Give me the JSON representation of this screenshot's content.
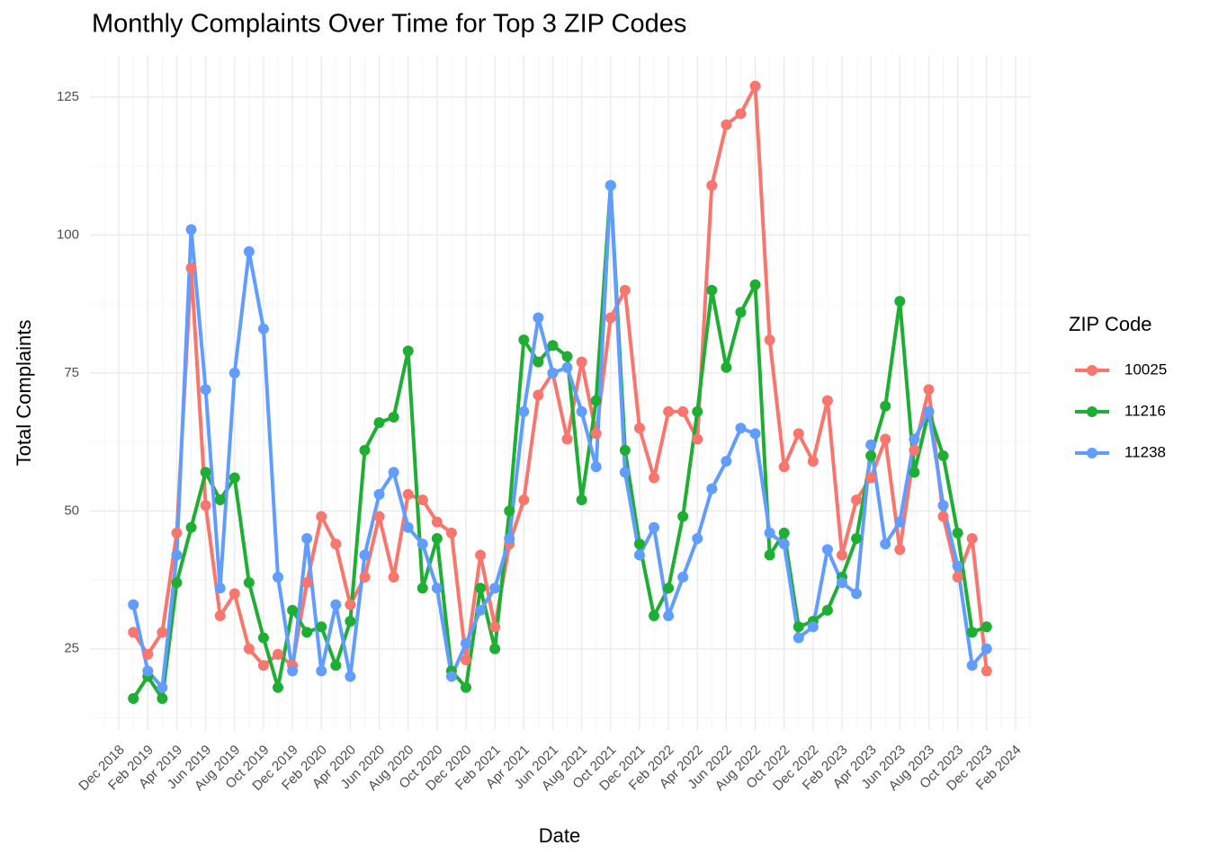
{
  "chart_data": {
    "type": "line",
    "title": "Monthly Complaints Over Time for Top 3 ZIP Codes",
    "xlabel": "Date",
    "ylabel": "Total Complaints",
    "legend_title": "ZIP Code",
    "legend": "right",
    "grid": true,
    "x": [
      "2019-01",
      "2019-02",
      "2019-03",
      "2019-04",
      "2019-05",
      "2019-06",
      "2019-07",
      "2019-08",
      "2019-09",
      "2019-10",
      "2019-11",
      "2019-12",
      "2020-01",
      "2020-02",
      "2020-03",
      "2020-04",
      "2020-05",
      "2020-06",
      "2020-07",
      "2020-08",
      "2020-09",
      "2020-10",
      "2020-11",
      "2020-12",
      "2021-01",
      "2021-02",
      "2021-03",
      "2021-04",
      "2021-05",
      "2021-06",
      "2021-07",
      "2021-08",
      "2021-09",
      "2021-10",
      "2021-11",
      "2021-12",
      "2022-01",
      "2022-02",
      "2022-03",
      "2022-04",
      "2022-05",
      "2022-06",
      "2022-07",
      "2022-08",
      "2022-09",
      "2022-10",
      "2022-11",
      "2022-12",
      "2023-01",
      "2023-02",
      "2023-03",
      "2023-04",
      "2023-05",
      "2023-06",
      "2023-07",
      "2023-08",
      "2023-09",
      "2023-10",
      "2023-11",
      "2023-12"
    ],
    "xlim": [
      "2018-10",
      "2024-03"
    ],
    "xticks": [
      {
        "value": "2018-12",
        "label": "Dec 2018"
      },
      {
        "value": "2019-02",
        "label": "Feb 2019"
      },
      {
        "value": "2019-04",
        "label": "Apr 2019"
      },
      {
        "value": "2019-06",
        "label": "Jun 2019"
      },
      {
        "value": "2019-08",
        "label": "Aug 2019"
      },
      {
        "value": "2019-10",
        "label": "Oct 2019"
      },
      {
        "value": "2019-12",
        "label": "Dec 2019"
      },
      {
        "value": "2020-02",
        "label": "Feb 2020"
      },
      {
        "value": "2020-04",
        "label": "Apr 2020"
      },
      {
        "value": "2020-06",
        "label": "Jun 2020"
      },
      {
        "value": "2020-08",
        "label": "Aug 2020"
      },
      {
        "value": "2020-10",
        "label": "Oct 2020"
      },
      {
        "value": "2020-12",
        "label": "Dec 2020"
      },
      {
        "value": "2021-02",
        "label": "Feb 2021"
      },
      {
        "value": "2021-04",
        "label": "Apr 2021"
      },
      {
        "value": "2021-06",
        "label": "Jun 2021"
      },
      {
        "value": "2021-08",
        "label": "Aug 2021"
      },
      {
        "value": "2021-10",
        "label": "Oct 2021"
      },
      {
        "value": "2021-12",
        "label": "Dec 2021"
      },
      {
        "value": "2022-02",
        "label": "Feb 2022"
      },
      {
        "value": "2022-04",
        "label": "Apr 2022"
      },
      {
        "value": "2022-06",
        "label": "Jun 2022"
      },
      {
        "value": "2022-08",
        "label": "Aug 2022"
      },
      {
        "value": "2022-10",
        "label": "Oct 2022"
      },
      {
        "value": "2022-12",
        "label": "Dec 2022"
      },
      {
        "value": "2023-02",
        "label": "Feb 2023"
      },
      {
        "value": "2023-04",
        "label": "Apr 2023"
      },
      {
        "value": "2023-06",
        "label": "Jun 2023"
      },
      {
        "value": "2023-08",
        "label": "Aug 2023"
      },
      {
        "value": "2023-10",
        "label": "Oct 2023"
      },
      {
        "value": "2023-12",
        "label": "Dec 2023"
      },
      {
        "value": "2024-02",
        "label": "Feb 2024"
      }
    ],
    "ylim": [
      10.3,
      132.5
    ],
    "yticks": [
      25,
      50,
      75,
      100,
      125
    ],
    "series": [
      {
        "name": "10025",
        "color": "#F8766D",
        "values": [
          28,
          24,
          28,
          46,
          94,
          51,
          31,
          35,
          25,
          22,
          24,
          22,
          37,
          49,
          44,
          33,
          38,
          49,
          38,
          53,
          52,
          48,
          46,
          23,
          42,
          29,
          44,
          52,
          71,
          75,
          63,
          77,
          64,
          85,
          90,
          65,
          56,
          68,
          68,
          63,
          109,
          120,
          122,
          127,
          81,
          58,
          64,
          59,
          70,
          42,
          52,
          56,
          63,
          43,
          61,
          72,
          49,
          38,
          45,
          21
        ]
      },
      {
        "name": "11216",
        "color": "#1FAE34",
        "values": [
          16,
          20,
          16,
          37,
          47,
          57,
          52,
          56,
          37,
          27,
          18,
          32,
          28,
          29,
          22,
          30,
          61,
          66,
          67,
          79,
          36,
          45,
          21,
          18,
          36,
          25,
          50,
          81,
          77,
          80,
          78,
          52,
          70,
          109,
          61,
          44,
          31,
          36,
          49,
          68,
          90,
          76,
          86,
          91,
          42,
          46,
          29,
          30,
          32,
          38,
          45,
          60,
          69,
          88,
          57,
          68,
          60,
          46,
          28,
          29
        ]
      },
      {
        "name": "11238",
        "color": "#619CFF",
        "values": [
          33,
          21,
          18,
          42,
          101,
          72,
          36,
          75,
          97,
          83,
          38,
          21,
          45,
          21,
          33,
          20,
          42,
          53,
          57,
          47,
          44,
          36,
          20,
          26,
          32,
          36,
          45,
          68,
          85,
          75,
          76,
          68,
          58,
          109,
          57,
          42,
          47,
          31,
          38,
          45,
          54,
          59,
          65,
          64,
          46,
          44,
          27,
          29,
          43,
          37,
          35,
          62,
          44,
          48,
          63,
          68,
          51,
          40,
          22,
          25
        ]
      }
    ]
  }
}
